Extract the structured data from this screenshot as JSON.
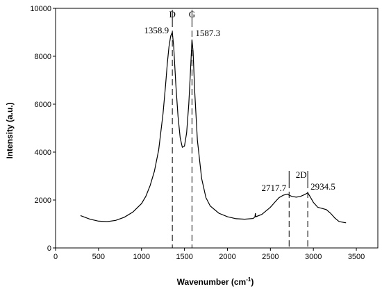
{
  "chart_data": {
    "type": "line",
    "xlabel": "Wavenumber (cm",
    "xlabel_sup": "-1",
    "xlabel_end": ")",
    "ylabel": "Intensity (a.u.)",
    "xlim": [
      0,
      3750
    ],
    "ylim": [
      0,
      10000
    ],
    "xticks": [
      0,
      500,
      1000,
      1500,
      2000,
      2500,
      3000,
      3500
    ],
    "yticks": [
      0,
      2000,
      4000,
      6000,
      8000,
      10000
    ],
    "grid": false,
    "series": [
      {
        "color": "#000000",
        "x": [
          290,
          400,
          500,
          600,
          700,
          800,
          900,
          1000,
          1050,
          1100,
          1150,
          1200,
          1250,
          1280,
          1300,
          1320,
          1340,
          1358.9,
          1375,
          1400,
          1425,
          1450,
          1475,
          1500,
          1525,
          1550,
          1570,
          1587.3,
          1600,
          1620,
          1650,
          1700,
          1750,
          1800,
          1900,
          2000,
          2100,
          2200,
          2300,
          2320,
          2325,
          2330,
          2400,
          2500,
          2550,
          2600,
          2650,
          2700,
          2717.7,
          2750,
          2800,
          2850,
          2900,
          2934.5,
          2960,
          3000,
          3050,
          3100,
          3150,
          3200,
          3250,
          3300,
          3380
        ],
        "y": [
          1350,
          1200,
          1120,
          1100,
          1150,
          1280,
          1500,
          1850,
          2150,
          2600,
          3200,
          4100,
          5600,
          6800,
          7700,
          8400,
          8850,
          9000,
          8400,
          6800,
          5500,
          4600,
          4200,
          4250,
          4800,
          6000,
          7400,
          8700,
          8200,
          6500,
          4500,
          2900,
          2100,
          1750,
          1450,
          1300,
          1220,
          1200,
          1230,
          1300,
          1450,
          1300,
          1400,
          1700,
          1900,
          2100,
          2200,
          2250,
          2200,
          2150,
          2120,
          2150,
          2230,
          2300,
          2150,
          1900,
          1700,
          1650,
          1600,
          1450,
          1250,
          1100,
          1050
        ]
      }
    ],
    "peak_markers": [
      {
        "x": 1358.9,
        "label": "1358.9",
        "band": "D"
      },
      {
        "x": 1587.3,
        "label": "1587.3",
        "band": "G"
      },
      {
        "x": 2717.7,
        "label": "2717.7",
        "band": ""
      },
      {
        "x": 2934.5,
        "label": "2934.5",
        "band": ""
      }
    ],
    "band_2d_label": "2D"
  }
}
